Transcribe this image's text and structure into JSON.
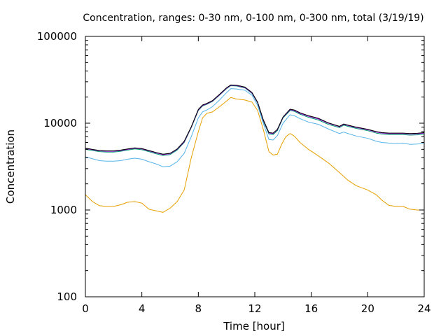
{
  "chart_data": {
    "type": "line",
    "title": "Concentration, ranges: 0-30 nm, 0-100 nm, 0-300 nm, total (3/19/19)",
    "xlabel": "Time [hour]",
    "ylabel": "Concentration",
    "xlim": [
      0,
      24
    ],
    "ylim": [
      100,
      100000
    ],
    "yscale": "log",
    "grid": false,
    "x_ticks": [
      0,
      4,
      8,
      12,
      16,
      20,
      24
    ],
    "x_tick_labels": [
      "0",
      "4",
      "8",
      "12",
      "16",
      "20",
      "24"
    ],
    "y_ticks": [
      100,
      1000,
      10000,
      100000
    ],
    "y_tick_labels": [
      "100",
      "1000",
      "10000",
      "100000"
    ],
    "series": [
      {
        "color": "#e69f00",
        "points": [
          [
            0,
            1500
          ],
          [
            0.5,
            1250
          ],
          [
            1,
            1120
          ],
          [
            1.5,
            1100
          ],
          [
            2,
            1100
          ],
          [
            2.5,
            1150
          ],
          [
            3,
            1230
          ],
          [
            3.5,
            1250
          ],
          [
            4,
            1200
          ],
          [
            4.5,
            1020
          ],
          [
            5,
            980
          ],
          [
            5.5,
            940
          ],
          [
            6,
            1050
          ],
          [
            6.5,
            1250
          ],
          [
            7,
            1700
          ],
          [
            7.5,
            4000
          ],
          [
            8,
            8000
          ],
          [
            8.3,
            11500
          ],
          [
            8.6,
            13000
          ],
          [
            9,
            13500
          ],
          [
            9.5,
            15500
          ],
          [
            10,
            18000
          ],
          [
            10.3,
            19800
          ],
          [
            10.7,
            19000
          ],
          [
            11.3,
            18500
          ],
          [
            11.8,
            17500
          ],
          [
            12.2,
            14000
          ],
          [
            12.6,
            8500
          ],
          [
            13,
            4700
          ],
          [
            13.3,
            4300
          ],
          [
            13.6,
            4400
          ],
          [
            13.9,
            5700
          ],
          [
            14.2,
            7000
          ],
          [
            14.5,
            7600
          ],
          [
            14.8,
            7100
          ],
          [
            15.2,
            6000
          ],
          [
            15.8,
            5000
          ],
          [
            16.5,
            4200
          ],
          [
            17.2,
            3500
          ],
          [
            18,
            2700
          ],
          [
            18.6,
            2200
          ],
          [
            19.2,
            1900
          ],
          [
            20,
            1700
          ],
          [
            20.6,
            1500
          ],
          [
            21,
            1300
          ],
          [
            21.5,
            1130
          ],
          [
            22,
            1100
          ],
          [
            22.5,
            1100
          ],
          [
            23,
            1020
          ],
          [
            23.5,
            1000
          ],
          [
            24,
            1000
          ]
        ]
      },
      {
        "color": "#56b4e9",
        "points": [
          [
            0,
            4100
          ],
          [
            0.5,
            3900
          ],
          [
            1,
            3700
          ],
          [
            1.5,
            3650
          ],
          [
            2,
            3650
          ],
          [
            2.5,
            3700
          ],
          [
            3,
            3850
          ],
          [
            3.5,
            3950
          ],
          [
            4,
            3850
          ],
          [
            4.5,
            3600
          ],
          [
            5,
            3400
          ],
          [
            5.5,
            3150
          ],
          [
            6,
            3200
          ],
          [
            6.5,
            3600
          ],
          [
            7,
            4500
          ],
          [
            7.5,
            7000
          ],
          [
            8,
            11500
          ],
          [
            8.3,
            13500
          ],
          [
            8.6,
            14200
          ],
          [
            9,
            15500
          ],
          [
            9.5,
            18500
          ],
          [
            10,
            22500
          ],
          [
            10.3,
            25000
          ],
          [
            10.7,
            24800
          ],
          [
            11.3,
            24000
          ],
          [
            11.8,
            21000
          ],
          [
            12.2,
            16000
          ],
          [
            12.6,
            10000
          ],
          [
            13,
            6500
          ],
          [
            13.3,
            6400
          ],
          [
            13.6,
            7200
          ],
          [
            14,
            10000
          ],
          [
            14.5,
            12500
          ],
          [
            14.8,
            12200
          ],
          [
            15.2,
            11300
          ],
          [
            15.8,
            10300
          ],
          [
            16.5,
            9700
          ],
          [
            17.2,
            8600
          ],
          [
            18,
            7600
          ],
          [
            18.3,
            7900
          ],
          [
            18.6,
            7600
          ],
          [
            19.2,
            7100
          ],
          [
            20,
            6700
          ],
          [
            20.6,
            6200
          ],
          [
            21,
            6000
          ],
          [
            21.5,
            5900
          ],
          [
            22,
            5850
          ],
          [
            22.5,
            5900
          ],
          [
            23,
            5700
          ],
          [
            23.5,
            5750
          ],
          [
            24,
            5850
          ]
        ]
      },
      {
        "color": "#009e73",
        "points": [
          [
            0,
            5000
          ],
          [
            0.5,
            4850
          ],
          [
            1,
            4700
          ],
          [
            1.5,
            4650
          ],
          [
            2,
            4650
          ],
          [
            2.5,
            4750
          ],
          [
            3,
            4900
          ],
          [
            3.5,
            5050
          ],
          [
            4,
            4950
          ],
          [
            4.5,
            4700
          ],
          [
            5,
            4450
          ],
          [
            5.5,
            4250
          ],
          [
            6,
            4350
          ],
          [
            6.5,
            4900
          ],
          [
            7,
            6000
          ],
          [
            7.5,
            8900
          ],
          [
            8,
            14000
          ],
          [
            8.3,
            15800
          ],
          [
            8.6,
            16500
          ],
          [
            9,
            17800
          ],
          [
            9.5,
            21000
          ],
          [
            10,
            25000
          ],
          [
            10.3,
            27000
          ],
          [
            10.7,
            26800
          ],
          [
            11.3,
            25500
          ],
          [
            11.8,
            22000
          ],
          [
            12.2,
            17000
          ],
          [
            12.6,
            10500
          ],
          [
            13,
            7500
          ],
          [
            13.3,
            7400
          ],
          [
            13.6,
            8200
          ],
          [
            14,
            11500
          ],
          [
            14.5,
            14000
          ],
          [
            14.8,
            13700
          ],
          [
            15.2,
            12700
          ],
          [
            15.8,
            11700
          ],
          [
            16.5,
            10900
          ],
          [
            17.2,
            9700
          ],
          [
            18,
            8900
          ],
          [
            18.3,
            9500
          ],
          [
            18.6,
            9200
          ],
          [
            19.2,
            8700
          ],
          [
            20,
            8200
          ],
          [
            20.6,
            7700
          ],
          [
            21,
            7500
          ],
          [
            21.5,
            7400
          ],
          [
            22,
            7400
          ],
          [
            22.5,
            7400
          ],
          [
            23,
            7300
          ],
          [
            23.5,
            7350
          ],
          [
            24,
            7500
          ]
        ]
      },
      {
        "color": "#9400d3",
        "points": [
          [
            0,
            5100
          ],
          [
            0.5,
            4950
          ],
          [
            1,
            4800
          ],
          [
            1.5,
            4750
          ],
          [
            2,
            4750
          ],
          [
            2.5,
            4850
          ],
          [
            3,
            5000
          ],
          [
            3.5,
            5150
          ],
          [
            4,
            5050
          ],
          [
            4.5,
            4800
          ],
          [
            5,
            4550
          ],
          [
            5.5,
            4350
          ],
          [
            6,
            4450
          ],
          [
            6.5,
            5000
          ],
          [
            7,
            6100
          ],
          [
            7.5,
            9000
          ],
          [
            8,
            14200
          ],
          [
            8.3,
            16000
          ],
          [
            8.6,
            16700
          ],
          [
            9,
            18000
          ],
          [
            9.5,
            21200
          ],
          [
            10,
            25300
          ],
          [
            10.3,
            27300
          ],
          [
            10.7,
            27100
          ],
          [
            11.3,
            25800
          ],
          [
            11.8,
            22300
          ],
          [
            12.2,
            17300
          ],
          [
            12.6,
            10800
          ],
          [
            13,
            7700
          ],
          [
            13.3,
            7600
          ],
          [
            13.6,
            8400
          ],
          [
            14,
            11700
          ],
          [
            14.5,
            14300
          ],
          [
            14.8,
            14000
          ],
          [
            15.2,
            13000
          ],
          [
            15.8,
            12000
          ],
          [
            16.5,
            11200
          ],
          [
            17.2,
            10000
          ],
          [
            18,
            9100
          ],
          [
            18.3,
            9700
          ],
          [
            18.6,
            9400
          ],
          [
            19.2,
            8900
          ],
          [
            20,
            8400
          ],
          [
            20.6,
            7900
          ],
          [
            21,
            7700
          ],
          [
            21.5,
            7600
          ],
          [
            22,
            7600
          ],
          [
            22.5,
            7600
          ],
          [
            23,
            7500
          ],
          [
            23.5,
            7550
          ],
          [
            24,
            7700
          ]
        ]
      },
      {
        "color": "#000000",
        "points": [
          [
            0,
            5150
          ],
          [
            0.5,
            5000
          ],
          [
            1,
            4850
          ],
          [
            1.5,
            4800
          ],
          [
            2,
            4800
          ],
          [
            2.5,
            4900
          ],
          [
            3,
            5050
          ],
          [
            3.5,
            5200
          ],
          [
            4,
            5100
          ],
          [
            4.5,
            4850
          ],
          [
            5,
            4600
          ],
          [
            5.5,
            4400
          ],
          [
            6,
            4500
          ],
          [
            6.5,
            5050
          ],
          [
            7,
            6200
          ],
          [
            7.5,
            9100
          ],
          [
            8,
            14400
          ],
          [
            8.3,
            16200
          ],
          [
            8.6,
            16900
          ],
          [
            9,
            18200
          ],
          [
            9.5,
            21500
          ],
          [
            10,
            25600
          ],
          [
            10.3,
            27600
          ],
          [
            10.7,
            27400
          ],
          [
            11.3,
            26100
          ],
          [
            11.8,
            22600
          ],
          [
            12.2,
            17500
          ],
          [
            12.6,
            11000
          ],
          [
            13,
            7800
          ],
          [
            13.3,
            7700
          ],
          [
            13.6,
            8500
          ],
          [
            14,
            11800
          ],
          [
            14.5,
            14500
          ],
          [
            14.8,
            14200
          ],
          [
            15.2,
            13200
          ],
          [
            15.8,
            12200
          ],
          [
            16.5,
            11400
          ],
          [
            17.2,
            10100
          ],
          [
            18,
            9200
          ],
          [
            18.3,
            9800
          ],
          [
            18.6,
            9500
          ],
          [
            19.2,
            9000
          ],
          [
            20,
            8500
          ],
          [
            20.6,
            8000
          ],
          [
            21,
            7800
          ],
          [
            21.5,
            7700
          ],
          [
            22,
            7700
          ],
          [
            22.5,
            7700
          ],
          [
            23,
            7600
          ],
          [
            23.5,
            7650
          ],
          [
            24,
            7800
          ]
        ]
      }
    ]
  }
}
